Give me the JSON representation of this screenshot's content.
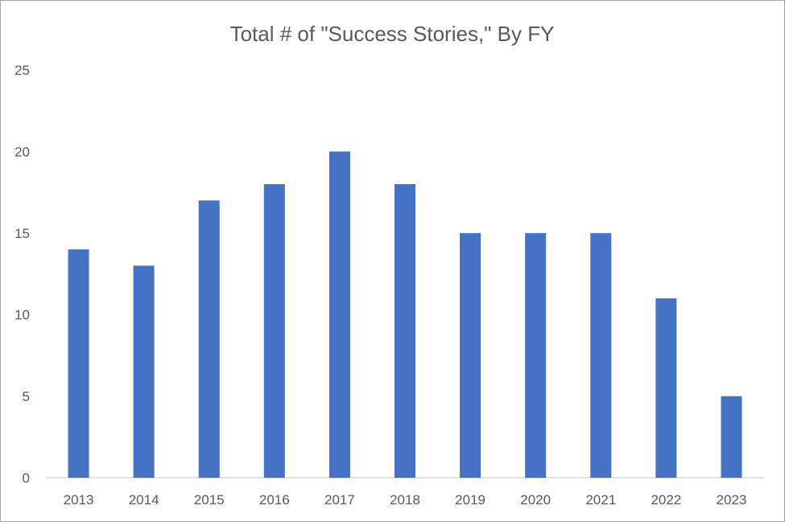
{
  "chart_data": {
    "type": "bar",
    "title": "Total # of \"Success Stories,\" By FY",
    "xlabel": "",
    "ylabel": "",
    "categories": [
      "2013",
      "2014",
      "2015",
      "2016",
      "2017",
      "2018",
      "2019",
      "2020",
      "2021",
      "2022",
      "2023"
    ],
    "values": [
      14,
      13,
      17,
      18,
      20,
      18,
      15,
      15,
      15,
      11,
      5
    ],
    "ylim": [
      0,
      25
    ],
    "yticks": [
      "0",
      "5",
      "10",
      "15",
      "20",
      "25"
    ],
    "grid": false,
    "legend": "none",
    "colors": {
      "bar": "#4472c4",
      "axis": "#d9d9d9",
      "text": "#595959"
    }
  }
}
